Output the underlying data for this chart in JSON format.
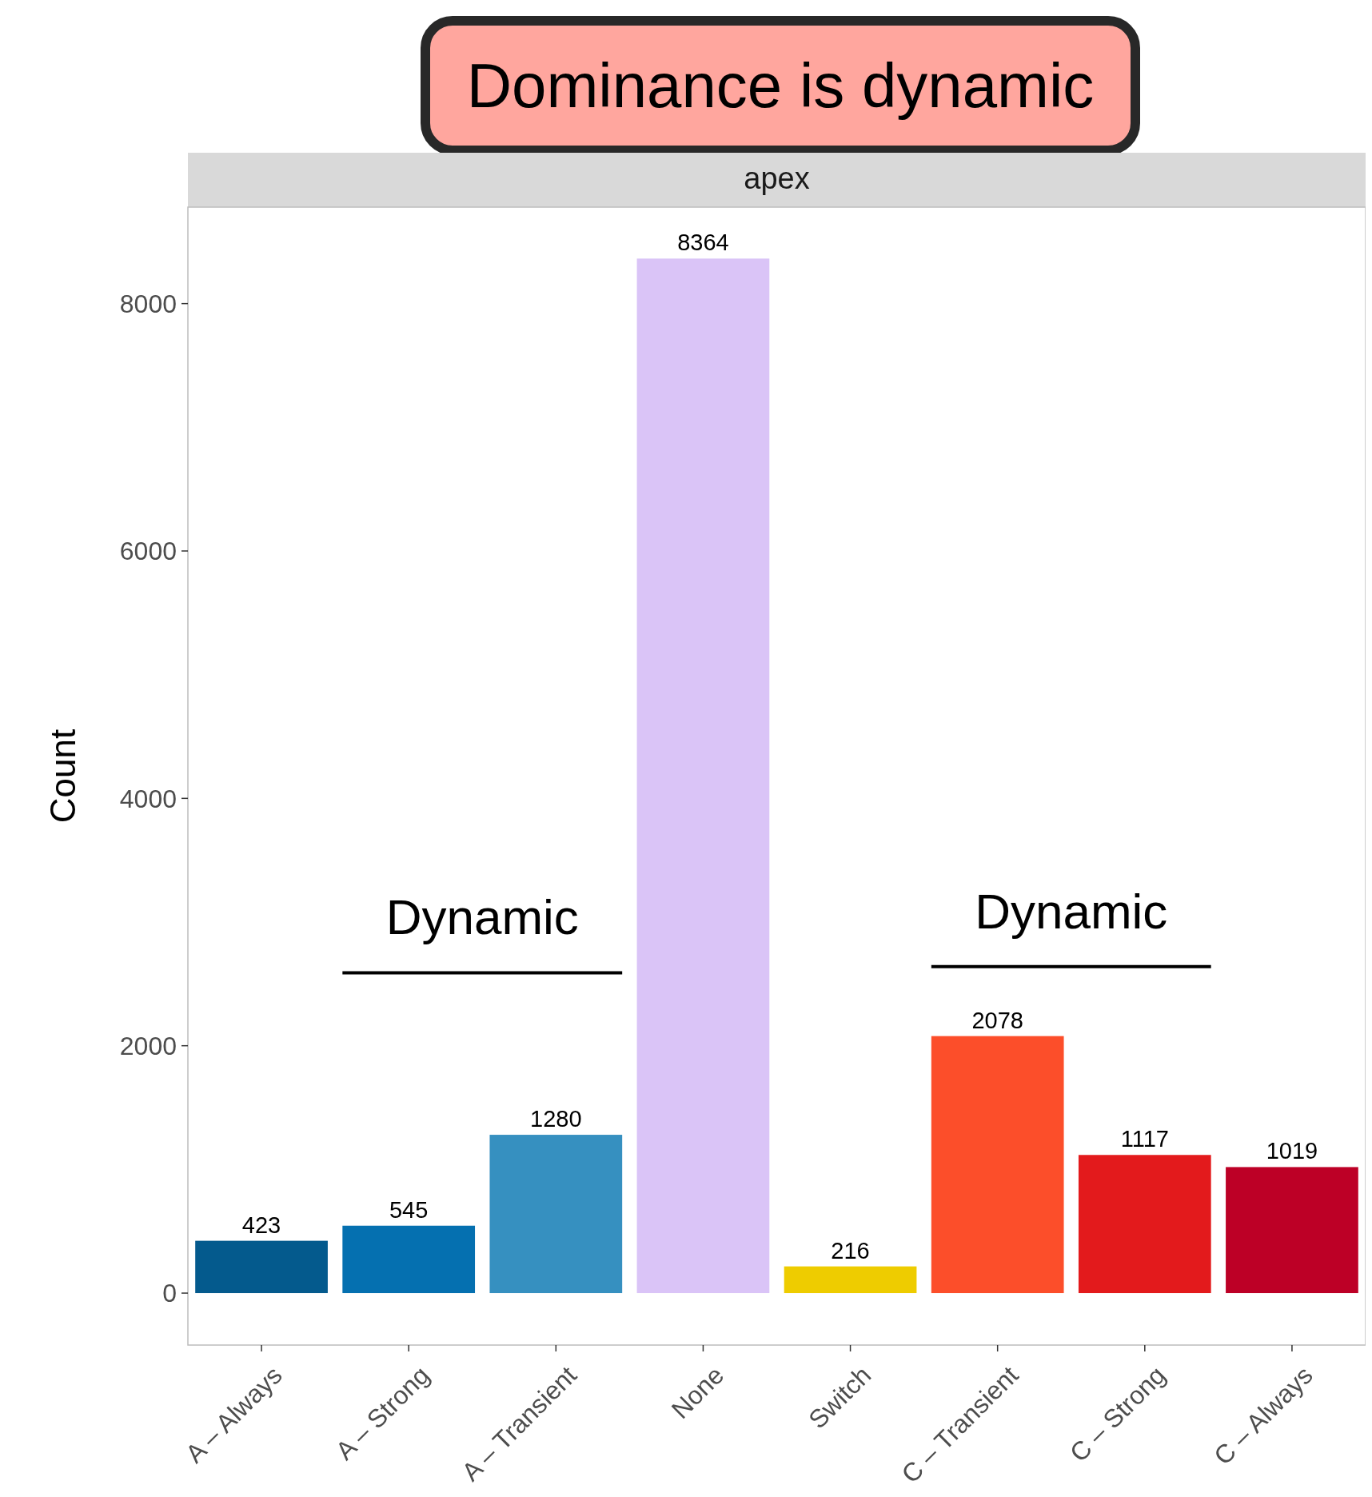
{
  "chart_data": {
    "type": "bar",
    "title": "Dominance is dynamic",
    "subtitle": "apex",
    "ylabel": "Count",
    "categories": [
      "A – Always",
      "A – Strong",
      "A – Transient",
      "None",
      "Switch",
      "C – Transient",
      "C – Strong",
      "C – Always"
    ],
    "values": [
      423,
      545,
      1280,
      8364,
      216,
      2078,
      1117,
      1019
    ],
    "colors": [
      "#045a8d",
      "#0570b0",
      "#3690c0",
      "#dac4f7",
      "#eecc00",
      "#fc4e2a",
      "#e31a1c",
      "#bd0026"
    ],
    "ylim": [
      -420,
      8780
    ],
    "yticks": [
      0,
      2000,
      4000,
      6000,
      8000
    ],
    "grid": false,
    "data_labels": true,
    "annotations": [
      "Dynamic",
      "Dynamic"
    ]
  }
}
